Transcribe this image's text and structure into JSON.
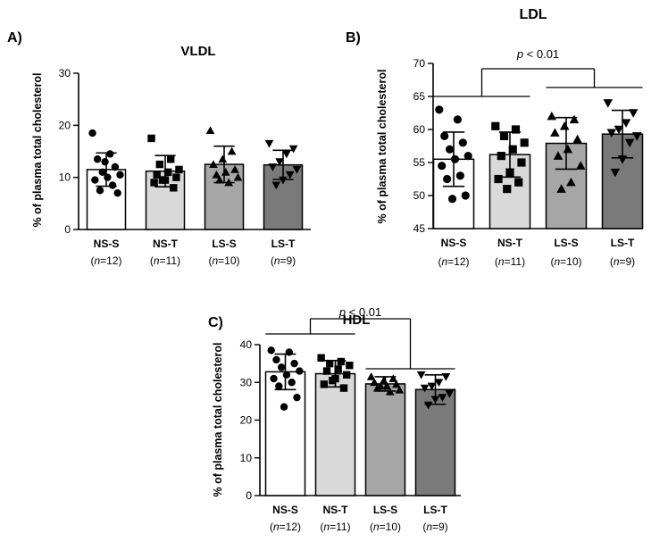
{
  "chart_data": [
    {
      "type": "bar",
      "panel_label": "A)",
      "title": "VLDL",
      "ylabel": "% of plasma total cholesterol",
      "xlabel": "",
      "ylim": [
        0,
        30
      ],
      "yticks": [
        0,
        10,
        20,
        30
      ],
      "categories": [
        "NS-S",
        "NS-T",
        "LS-S",
        "LS-T"
      ],
      "n_labels": [
        [
          "12"
        ],
        [
          "11"
        ],
        [
          "10"
        ],
        [
          "9"
        ]
      ],
      "n_prefix": "n",
      "means": [
        11.5,
        11.2,
        12.5,
        12.4
      ],
      "sd": [
        3.2,
        3.0,
        3.5,
        2.8
      ],
      "fill_colors": [
        "#ffffff",
        "#d9d9d9",
        "#a6a6a6",
        "#7a7a7a"
      ],
      "markers": [
        "circle",
        "square",
        "triangle-up",
        "triangle-down"
      ],
      "points": [
        [
          18.5,
          14.5,
          13.5,
          12.0,
          11.0,
          10.5,
          10.0,
          9.5,
          8.5,
          7.5,
          7.0,
          13.0
        ],
        [
          17.5,
          13.5,
          12.5,
          11.5,
          11.0,
          10.5,
          10.0,
          9.5,
          9.0,
          8.0,
          9.5
        ],
        [
          19.0,
          15.0,
          13.5,
          12.5,
          11.5,
          11.0,
          10.5,
          10.0,
          9.0,
          9.5
        ],
        [
          16.5,
          15.5,
          14.5,
          13.0,
          12.0,
          11.5,
          10.5,
          9.5,
          8.5
        ]
      ],
      "significance": null
    },
    {
      "type": "bar",
      "panel_label": "B)",
      "title": "LDL",
      "ylabel": "% of plasma total cholesterol",
      "xlabel": "",
      "ylim": [
        45,
        70
      ],
      "yticks": [
        45,
        50,
        55,
        60,
        65,
        70
      ],
      "categories": [
        "NS-S",
        "NS-T",
        "LS-S",
        "LS-T"
      ],
      "n_labels": [
        [
          "12"
        ],
        [
          "11"
        ],
        [
          "10"
        ],
        [
          "9"
        ]
      ],
      "n_prefix": "n",
      "means": [
        55.5,
        56.2,
        57.9,
        59.3
      ],
      "sd": [
        4.1,
        3.4,
        3.9,
        3.6
      ],
      "fill_colors": [
        "#ffffff",
        "#d9d9d9",
        "#a6a6a6",
        "#7a7a7a"
      ],
      "markers": [
        "circle",
        "square",
        "triangle-up",
        "triangle-down"
      ],
      "points": [
        [
          63.0,
          61.5,
          59.0,
          58.0,
          57.0,
          56.0,
          55.5,
          54.5,
          53.0,
          52.5,
          50.0,
          49.5
        ],
        [
          60.5,
          60.0,
          59.0,
          58.0,
          57.0,
          56.0,
          55.0,
          53.5,
          52.5,
          52.0,
          51.0
        ],
        [
          62.0,
          61.5,
          60.5,
          59.5,
          58.5,
          57.0,
          56.0,
          54.5,
          52.0,
          51.0
        ],
        [
          64.0,
          62.5,
          61.0,
          60.0,
          59.5,
          59.0,
          58.0,
          55.5,
          53.5
        ]
      ],
      "significance": {
        "label": "p < 0.01",
        "p": "p",
        "rest": " < 0.01"
      }
    },
    {
      "type": "bar",
      "panel_label": "C)",
      "title": "HDL",
      "ylabel": "% of plasma total cholesterol",
      "xlabel": "",
      "ylim": [
        0,
        40
      ],
      "yticks": [
        0,
        10,
        20,
        30,
        40
      ],
      "categories": [
        "NS-S",
        "NS-T",
        "LS-S",
        "LS-T"
      ],
      "n_labels": [
        [
          "12"
        ],
        [
          "11"
        ],
        [
          "10"
        ],
        [
          "9"
        ]
      ],
      "n_prefix": "n",
      "means": [
        32.8,
        32.3,
        29.6,
        28.1
      ],
      "sd": [
        4.7,
        3.5,
        1.9,
        3.9
      ],
      "fill_colors": [
        "#ffffff",
        "#d9d9d9",
        "#a6a6a6",
        "#7a7a7a"
      ],
      "markers": [
        "circle",
        "square",
        "triangle-up",
        "triangle-down"
      ],
      "points": [
        [
          38.5,
          38.0,
          36.0,
          35.0,
          34.0,
          33.0,
          32.0,
          31.0,
          30.0,
          29.0,
          26.0,
          23.5
        ],
        [
          36.5,
          35.5,
          35.0,
          34.5,
          33.5,
          33.0,
          32.0,
          31.0,
          29.5,
          28.5,
          30.5
        ],
        [
          31.5,
          31.0,
          30.5,
          30.0,
          29.5,
          29.0,
          28.5,
          28.0,
          27.5,
          29.0
        ],
        [
          32.0,
          31.5,
          30.0,
          29.0,
          28.5,
          27.0,
          26.0,
          25.5,
          24.0
        ]
      ],
      "significance": {
        "label": "p < 0.01",
        "p": "p",
        "rest": " < 0.01"
      }
    }
  ]
}
